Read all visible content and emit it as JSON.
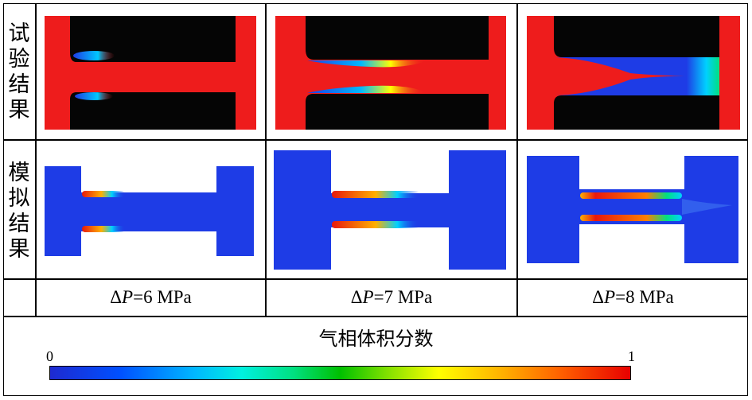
{
  "rows": {
    "experiment_label": [
      "试",
      "验",
      "结",
      "果"
    ],
    "simulation_label": [
      "模",
      "拟",
      "结",
      "果"
    ]
  },
  "pressure_labels": [
    {
      "symbol": "Δ",
      "var": "P",
      "text": " =6 MPa"
    },
    {
      "symbol": "Δ",
      "var": "P",
      "text": " =7 MPa"
    },
    {
      "symbol": "Δ",
      "var": "P",
      "text": " =8 MPa"
    }
  ],
  "legend": {
    "title": "气相体积分数",
    "min_label": "0",
    "max_label": "1"
  },
  "colors": {
    "liquid_red": "#ee1c1c",
    "solid_black": "#050505",
    "sim_blue": "#1e3ce6",
    "vapor_red": "#e8180c"
  }
}
